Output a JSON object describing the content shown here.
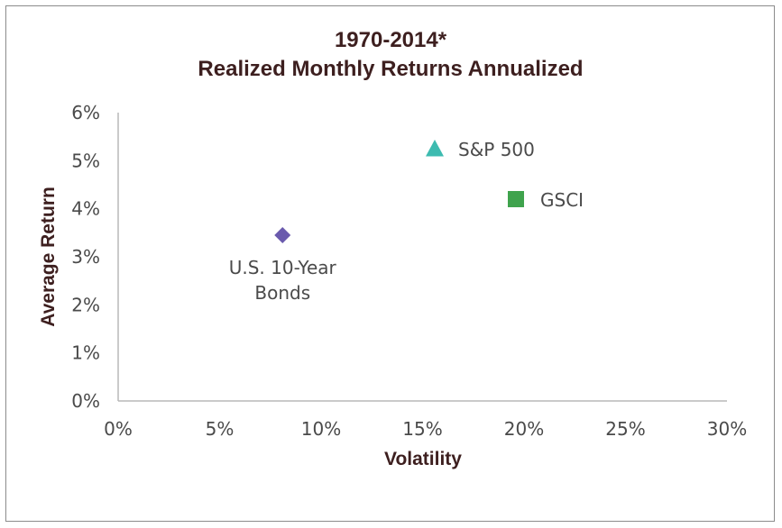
{
  "chart_data": {
    "type": "scatter",
    "title_line1": "1970-2014*",
    "title_line2": "Realized Monthly Returns Annualized",
    "xlabel": "Volatility",
    "ylabel": "Average Return",
    "xlim": [
      0,
      30
    ],
    "ylim": [
      0,
      6
    ],
    "x_ticks": [
      "0%",
      "5%",
      "10%",
      "15%",
      "20%",
      "25%",
      "30%"
    ],
    "y_ticks": [
      "0%",
      "1%",
      "2%",
      "3%",
      "4%",
      "5%",
      "6%"
    ],
    "points": [
      {
        "label_line1": "U.S. 10-Year",
        "label_line2": "Bonds",
        "x": 8.1,
        "y": 3.45,
        "marker": "diamond",
        "color": "#6a5aad"
      },
      {
        "label_line1": "S&P 500",
        "label_line2": "",
        "x": 15.6,
        "y": 5.25,
        "marker": "triangle",
        "color": "#3dbbb0"
      },
      {
        "label_line1": "GSCI",
        "label_line2": "",
        "x": 19.6,
        "y": 4.2,
        "marker": "square",
        "color": "#3fa34d"
      }
    ]
  }
}
